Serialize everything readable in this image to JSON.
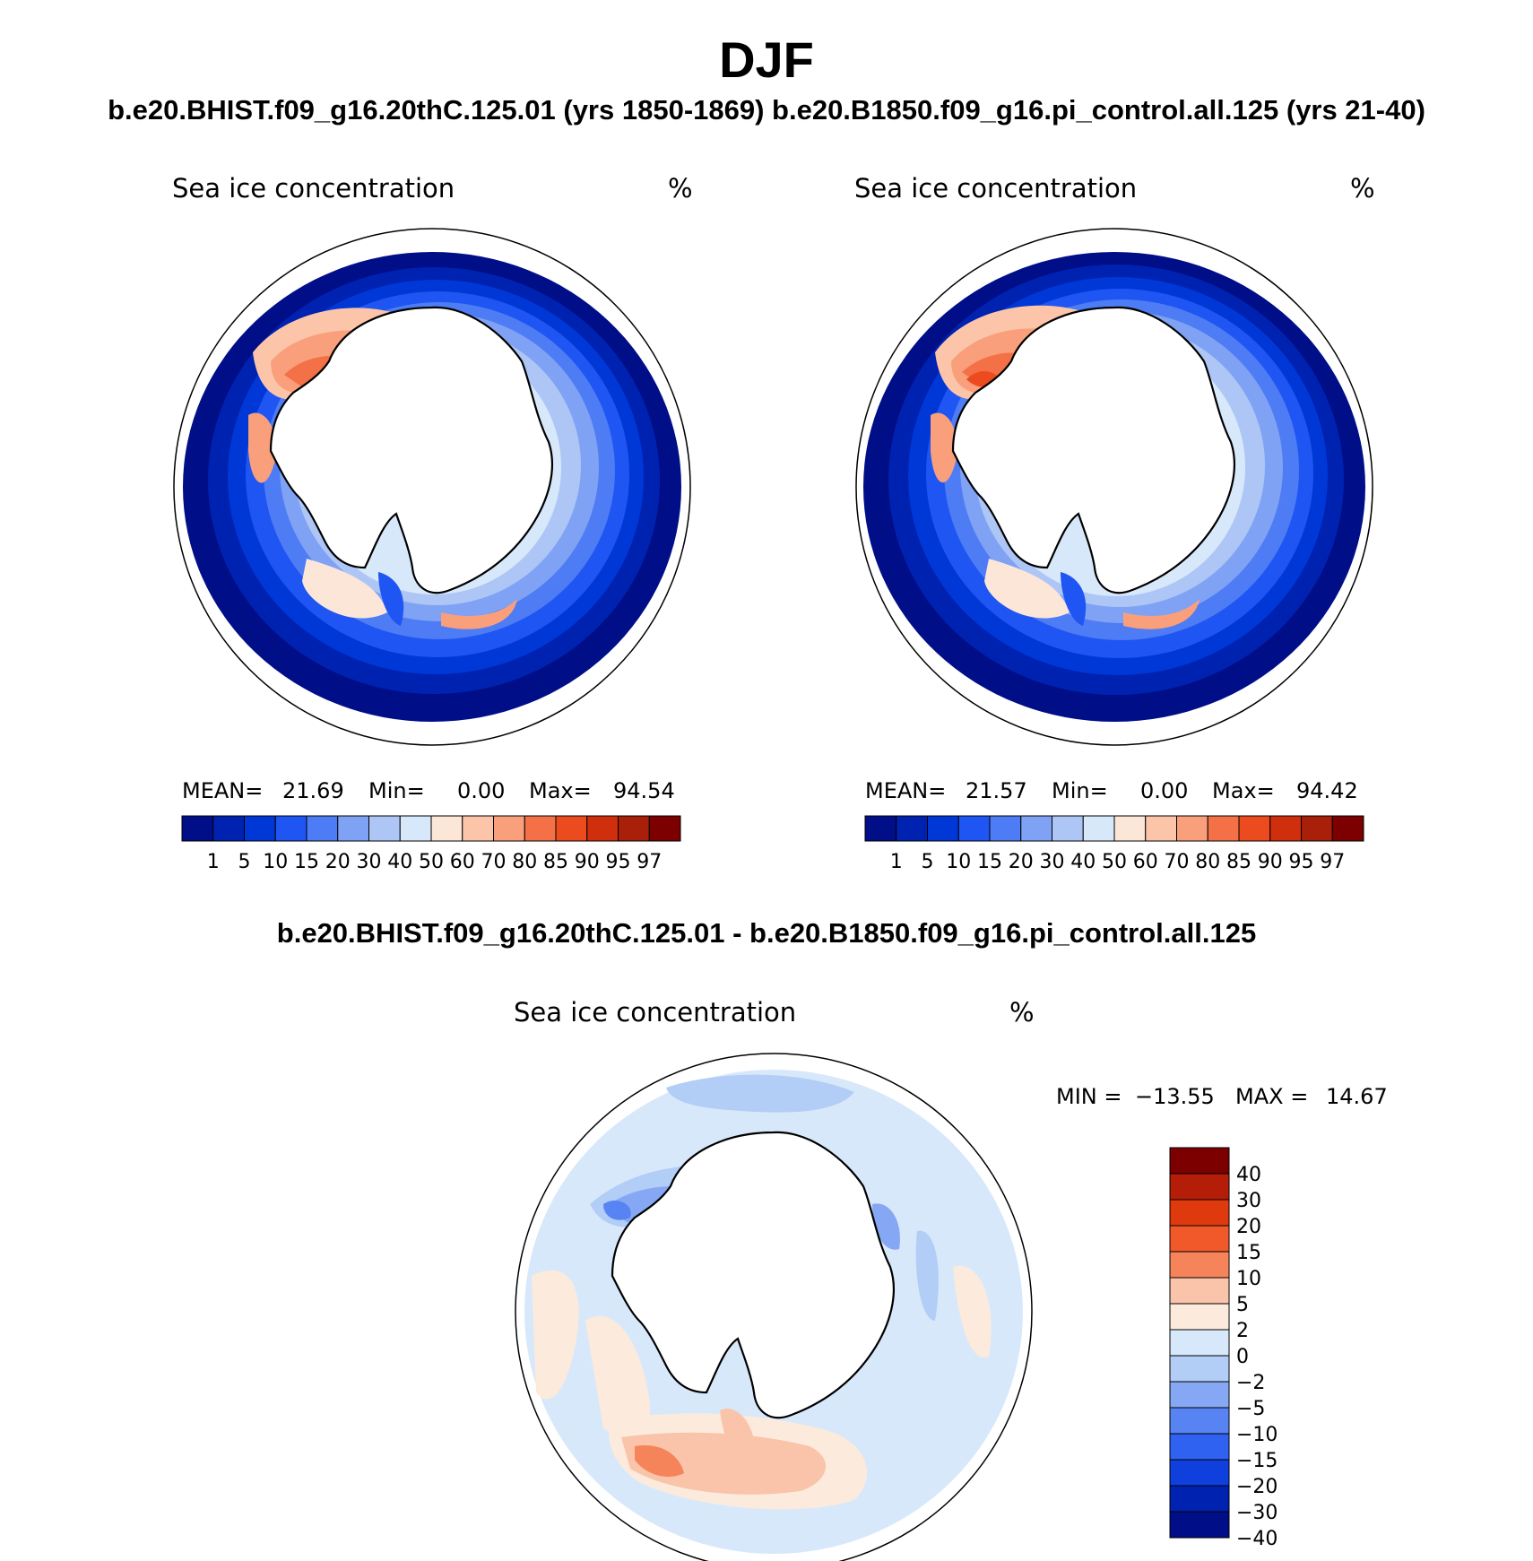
{
  "header": {
    "title": "DJF",
    "subtitle": "b.e20.BHIST.f09_g16.20thC.125.01 (yrs 1850-1869)  b.e20.B1850.f09_g16.pi_control.all.125 (yrs 21-40)",
    "diff_title": "b.e20.BHIST.f09_g16.20thC.125.01 - b.e20.B1850.f09_g16.pi_control.all.125"
  },
  "chart_data": [
    {
      "type": "heatmap",
      "projection": "south-polar-stereographic",
      "title": "Sea ice concentration",
      "units": "%",
      "case": "b.e20.BHIST.f09_g16.20thC.125.01 (yrs 1850-1869)",
      "stats": {
        "mean_label": "MEAN=",
        "mean": "21.69",
        "min_label": "Min=",
        "min": "0.00",
        "max_label": "Max=",
        "max": "94.54"
      },
      "levels": [
        "1",
        "5",
        "10",
        "15",
        "20",
        "30",
        "40",
        "50",
        "60",
        "70",
        "80",
        "85",
        "90",
        "95",
        "97"
      ],
      "colors": [
        "#000e88",
        "#0022b0",
        "#0038d8",
        "#1f55f2",
        "#4d7cf4",
        "#7fa2f4",
        "#adc6f6",
        "#d8e8fb",
        "#fce6d8",
        "#fcc5aa",
        "#f99f7c",
        "#f47046",
        "#ec4b1f",
        "#cf2f0c",
        "#a9200a",
        "#7d0000"
      ]
    },
    {
      "type": "heatmap",
      "projection": "south-polar-stereographic",
      "title": "Sea ice concentration",
      "units": "%",
      "case": "b.e20.B1850.f09_g16.pi_control.all.125 (yrs 21-40)",
      "stats": {
        "mean_label": "MEAN=",
        "mean": "21.57",
        "min_label": "Min=",
        "min": "0.00",
        "max_label": "Max=",
        "max": "94.42"
      },
      "levels": [
        "1",
        "5",
        "10",
        "15",
        "20",
        "30",
        "40",
        "50",
        "60",
        "70",
        "80",
        "85",
        "90",
        "95",
        "97"
      ],
      "colors": [
        "#000e88",
        "#0022b0",
        "#0038d8",
        "#1f55f2",
        "#4d7cf4",
        "#7fa2f4",
        "#adc6f6",
        "#d8e8fb",
        "#fce6d8",
        "#fcc5aa",
        "#f99f7c",
        "#f47046",
        "#ec4b1f",
        "#cf2f0c",
        "#a9200a",
        "#7d0000"
      ]
    },
    {
      "type": "heatmap",
      "projection": "south-polar-stereographic",
      "title": "Sea ice concentration",
      "units": "%",
      "case": "difference",
      "stats": {
        "min_label": "MIN =",
        "min": "−13.55",
        "max_label": "MAX =",
        "max": "14.67"
      },
      "levels": [
        "40",
        "30",
        "20",
        "15",
        "10",
        "5",
        "2",
        "0",
        "−2",
        "−5",
        "−10",
        "−15",
        "−20",
        "−30",
        "−40"
      ],
      "colors": [
        "#7d0000",
        "#b41e08",
        "#de3a0e",
        "#f2592a",
        "#f6845a",
        "#fac4aa",
        "#fcebdc",
        "#d8e8fb",
        "#b2cdf6",
        "#86a8f4",
        "#5784f2",
        "#2f62f0",
        "#0f3fdc",
        "#0022b0",
        "#000e88"
      ]
    }
  ]
}
